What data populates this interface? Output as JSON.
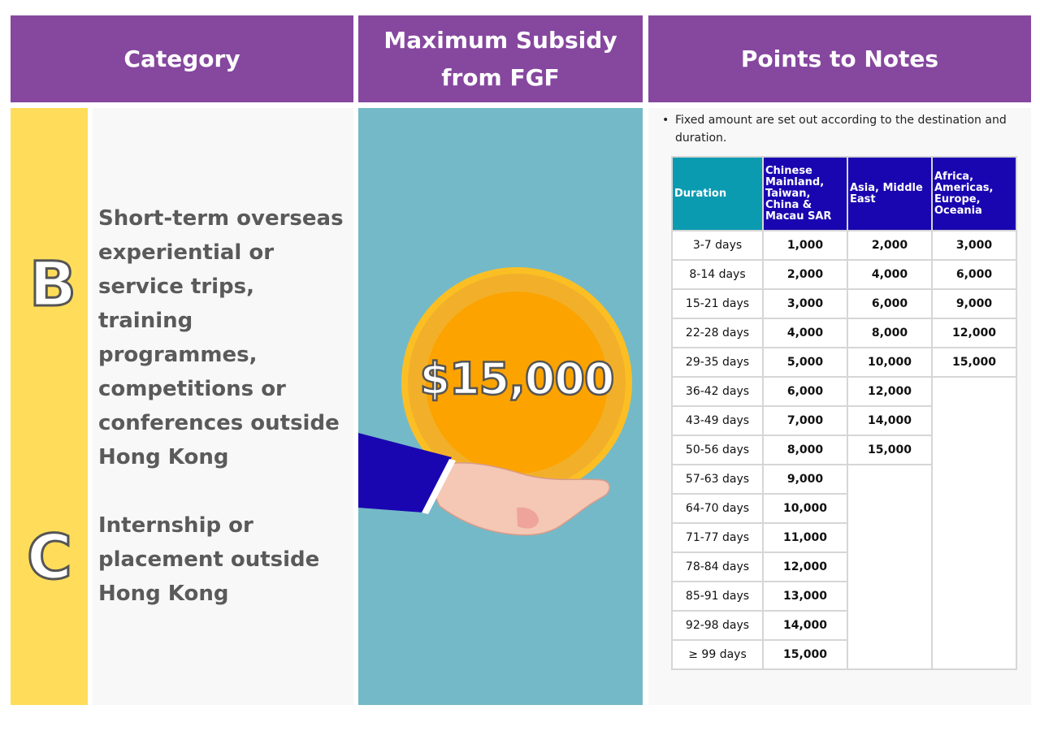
{
  "headers": {
    "category": "Category",
    "subsidy": "Maximum Subsidy from FGF",
    "notes": "Points to Notes"
  },
  "categories": [
    {
      "letter": "B",
      "text": "Short-term overseas experiential or service trips, training programmes, competitions or conferences outside Hong Kong"
    },
    {
      "letter": "C",
      "text": "Internship or placement outside Hong Kong"
    }
  ],
  "subsidy_amount": "$15,000",
  "icons": [
    "coin-icon",
    "hand-icon"
  ],
  "colors": {
    "header": "#86479f",
    "letter_bar": "#ffdd5a",
    "teal": "#74b9c8",
    "table_header": "#1a06b0",
    "duration_header": "#0b9bb1",
    "coin": "#fca300"
  },
  "notes": {
    "bullet": "Fixed amount are set out according to the destination and duration."
  },
  "table": {
    "headers": [
      "Duration",
      "Chinese Mainland, Taiwan, China & Macau SAR",
      "Asia, Middle East",
      "Africa, Americas, Europe, Oceania"
    ],
    "rows": [
      [
        "3-7 days",
        "1,000",
        "2,000",
        "3,000"
      ],
      [
        "8-14 days",
        "2,000",
        "4,000",
        "6,000"
      ],
      [
        "15-21 days",
        "3,000",
        "6,000",
        "9,000"
      ],
      [
        "22-28 days",
        "4,000",
        "8,000",
        "12,000"
      ],
      [
        "29-35 days",
        "5,000",
        "10,000",
        "15,000"
      ],
      [
        "36-42 days",
        "6,000",
        "12,000",
        ""
      ],
      [
        "43-49 days",
        "7,000",
        "14,000",
        ""
      ],
      [
        "50-56 days",
        "8,000",
        "15,000",
        ""
      ],
      [
        "57-63 days",
        "9,000",
        "",
        ""
      ],
      [
        "64-70 days",
        "10,000",
        "",
        ""
      ],
      [
        "71-77 days",
        "11,000",
        "",
        ""
      ],
      [
        "78-84 days",
        "12,000",
        "",
        ""
      ],
      [
        "85-91 days",
        "13,000",
        "",
        ""
      ],
      [
        "92-98 days",
        "14,000",
        "",
        ""
      ],
      [
        "≥ 99 days",
        "15,000",
        "",
        ""
      ]
    ]
  }
}
